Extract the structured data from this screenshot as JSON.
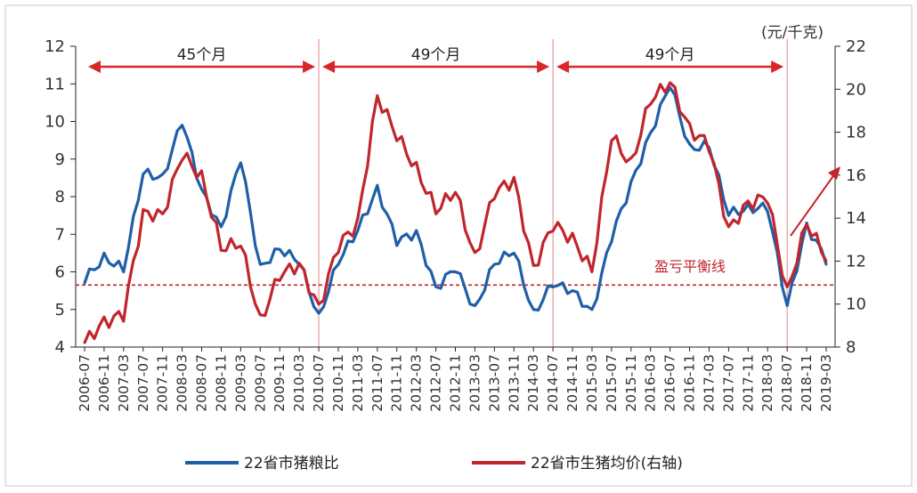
{
  "chart_data": {
    "type": "line",
    "x": [
      "2006-07",
      "2006-11",
      "2007-03",
      "2007-07",
      "2007-11",
      "2008-03",
      "2008-07",
      "2008-11",
      "2009-03",
      "2009-07",
      "2009-11",
      "2010-03",
      "2010-07",
      "2010-11",
      "2011-03",
      "2011-07",
      "2011-11",
      "2012-03",
      "2012-07",
      "2012-11",
      "2013-03",
      "2013-07",
      "2013-11",
      "2014-03",
      "2014-07",
      "2014-11",
      "2015-03",
      "2015-07",
      "2015-11",
      "2016-03",
      "2016-07",
      "2016-11",
      "2017-03",
      "2017-07",
      "2017-11",
      "2018-03",
      "2018-07",
      "2018-11",
      "2019-03"
    ],
    "x_tick_labels": [
      "2006-07",
      "2006-11",
      "2007-03",
      "2007-07",
      "2007-11",
      "2008-03",
      "2008-07",
      "2008-11",
      "2009-03",
      "2009-07",
      "2009-11",
      "2010-03",
      "2010-07",
      "2010-11",
      "2011-03",
      "2011-07",
      "2011-11",
      "2012-03",
      "2012-07",
      "2012-11",
      "2013-03",
      "2013-07",
      "2013-11",
      "2014-03",
      "2014-07",
      "2014-11",
      "2015-03",
      "2015-07",
      "2015-11",
      "2016-03",
      "2016-07",
      "2016-11",
      "2017-03",
      "2017-07",
      "2017-11",
      "2018-03",
      "2018-07",
      "2018-11",
      "2019-03"
    ],
    "y_left": {
      "ticks": [
        4,
        5,
        6,
        7,
        8,
        9,
        10,
        11,
        12
      ],
      "ylim": [
        4,
        12
      ]
    },
    "y_right": {
      "ticks": [
        8,
        10,
        12,
        14,
        16,
        18,
        20,
        22
      ],
      "ylim": [
        8,
        22
      ],
      "unit": "(元/千克)"
    },
    "series": [
      {
        "name": "22省市猪粮比",
        "axis": "left",
        "color": "#1f5fa8",
        "values": [
          5.7,
          6.5,
          6.0,
          8.6,
          8.6,
          9.9,
          8.2,
          7.2,
          8.9,
          6.2,
          6.6,
          6.2,
          4.9,
          6.2,
          7.1,
          8.3,
          6.7,
          7.1,
          5.6,
          6.0,
          5.1,
          6.2,
          6.5,
          5.0,
          5.6,
          5.5,
          5.0,
          6.8,
          8.4,
          9.7,
          10.9,
          9.4,
          9.3,
          7.5,
          7.8,
          7.6,
          5.1,
          7.3,
          6.2
        ]
      },
      {
        "name": "22省市生猪均价(右轴)",
        "axis": "right",
        "color": "#c0262c",
        "values": [
          8.2,
          9.4,
          9.2,
          14.4,
          14.2,
          16.7,
          16.2,
          12.5,
          12.7,
          9.5,
          11.1,
          11.9,
          10.0,
          12.4,
          14.0,
          19.7,
          17.6,
          16.6,
          14.2,
          15.2,
          12.4,
          14.9,
          15.9,
          11.8,
          13.4,
          13.3,
          11.5,
          17.6,
          16.8,
          19.3,
          20.3,
          18.4,
          17.1,
          13.6,
          14.8,
          14.7,
          10.8,
          13.7,
          12.0
        ]
      }
    ],
    "periods": [
      {
        "label": "45个月",
        "from": "2006-07",
        "to": "2010-07"
      },
      {
        "label": "49个月",
        "from": "2010-07",
        "to": "2014-07"
      },
      {
        "label": "49个月",
        "from": "2014-07",
        "to": "2018-07"
      }
    ],
    "cycle_lines_at": [
      "2010-07",
      "2014-07",
      "2018-07"
    ],
    "breakeven": {
      "label": "盈亏平衡线",
      "value_left": 5.65
    },
    "legend": {
      "placement": "bottom"
    },
    "grid": false
  }
}
